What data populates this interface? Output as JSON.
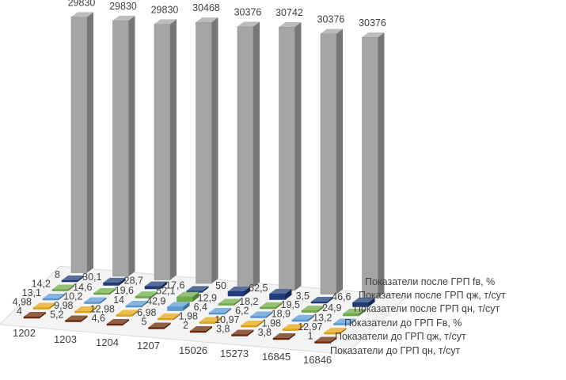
{
  "chart_data": {
    "type": "bar",
    "subtype": "3d-column",
    "title": "",
    "categories": [
      "1202",
      "1203",
      "1204",
      "1207",
      "15026",
      "15273",
      "16845",
      "16846"
    ],
    "series": [
      {
        "name": "Показатели до ГРП qн, т/сут",
        "color": "#6b2a07",
        "values": [
          4,
          5.2,
          4.6,
          5,
          2,
          3.8,
          3.8,
          1
        ],
        "labels": [
          "4",
          "5,2",
          "4,6",
          "5",
          "2",
          "3,8",
          "3,8",
          "1"
        ]
      },
      {
        "name": "Показатели до ГРП qж, т/сут",
        "color": "#e5a712",
        "values": [
          4.98,
          9.98,
          12.98,
          6.98,
          1.98,
          10.97,
          1.98,
          12.97
        ],
        "labels": [
          "4,98",
          "9,98",
          "12,98",
          "6,98",
          "1,98",
          "10,97",
          "1,98",
          "12,97"
        ]
      },
      {
        "name": "Показатели до ГРП Fв, %",
        "color": "#5b9bd5",
        "values": [
          13.1,
          10.2,
          14,
          42.9,
          6.4,
          6.2,
          18.9,
          13.2
        ],
        "labels": [
          "13,1",
          "10,2",
          "14",
          "42,9",
          "6,4",
          "6,2",
          "18,9",
          "13,2"
        ]
      },
      {
        "name": "Показатели после ГРП qн, т/сут",
        "color": "#70ad47",
        "values": [
          14.2,
          14.6,
          19.6,
          52.1,
          12.9,
          18.2,
          19.5,
          24.9
        ],
        "labels": [
          "14,2",
          "14,6",
          "19,6",
          "52,1",
          "12,9",
          "18,2",
          "19,5",
          "24,9"
        ]
      },
      {
        "name": "Показатели после ГРП qж, т/сут",
        "color": "#1f3d7a",
        "values": [
          8,
          30.1,
          28.7,
          17.6,
          50,
          62.5,
          3.5,
          46.6
        ],
        "labels": [
          "8",
          "30,1",
          "28,7",
          "17,6",
          "50",
          "62,5",
          "3,5",
          "46,6"
        ]
      },
      {
        "name": "Показатели после ГРП fв, %",
        "color": "#a5a5a5",
        "values": [
          29830,
          29830,
          29830,
          30468,
          30376,
          30742,
          30376,
          30376
        ],
        "labels": [
          "29830",
          "29830",
          "29830",
          "30468",
          "30376",
          "30742",
          "30376",
          "30376"
        ]
      }
    ],
    "grid": false,
    "legend": "right, along depth axis"
  }
}
